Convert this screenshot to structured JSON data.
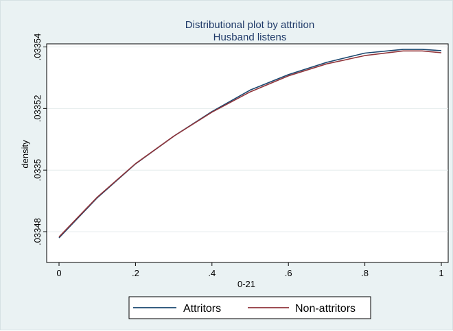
{
  "chart_data": {
    "type": "line",
    "title": "Distributional plot by attrition",
    "subtitle": "Husband listens",
    "xlabel": "0-21",
    "ylabel": "density",
    "xlim": [
      0,
      1
    ],
    "ylim": [
      0.03347,
      0.033541
    ],
    "x_ticks": [
      {
        "value": 0,
        "label": "0"
      },
      {
        "value": 0.2,
        "label": ".2"
      },
      {
        "value": 0.4,
        "label": ".4"
      },
      {
        "value": 0.6,
        "label": ".6"
      },
      {
        "value": 0.8,
        "label": ".8"
      },
      {
        "value": 1,
        "label": "1"
      }
    ],
    "y_ticks": [
      {
        "value": 0.03348,
        "label": ".03348"
      },
      {
        "value": 0.0335,
        "label": ".0335"
      },
      {
        "value": 0.03352,
        "label": ".03352"
      },
      {
        "value": 0.03354,
        "label": ".03354"
      }
    ],
    "grid": true,
    "legend_position": "bottom",
    "series": [
      {
        "name": "Attritors",
        "color": "#1a476f",
        "x": [
          0,
          0.1,
          0.2,
          0.3,
          0.4,
          0.5,
          0.6,
          0.7,
          0.8,
          0.9,
          0.95,
          1.0
        ],
        "y": [
          0.033478,
          0.033491,
          0.033502,
          0.033511,
          0.033519,
          0.033526,
          0.033531,
          0.033535,
          0.033538,
          0.0335392,
          0.0335392,
          0.0335388
        ]
      },
      {
        "name": "Non-attritors",
        "color": "#90353b",
        "x": [
          0,
          0.1,
          0.2,
          0.3,
          0.4,
          0.5,
          0.6,
          0.7,
          0.8,
          0.9,
          0.95,
          1.0
        ],
        "y": [
          0.0334783,
          0.0334912,
          0.0335021,
          0.033511,
          0.0335188,
          0.0335254,
          0.0335306,
          0.0335345,
          0.0335372,
          0.0335387,
          0.0335387,
          0.0335381
        ]
      }
    ]
  }
}
